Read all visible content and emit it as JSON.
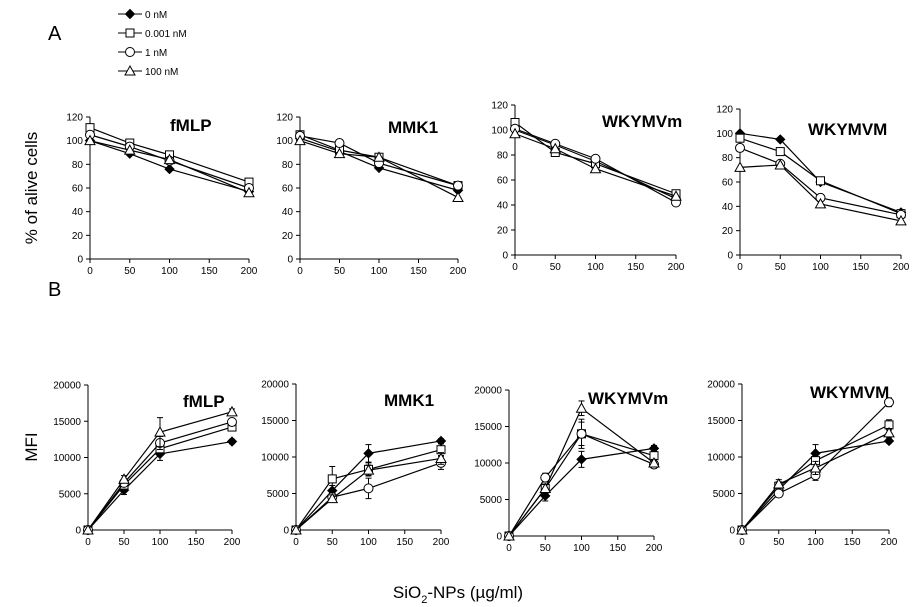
{
  "panel_labels": [
    "A",
    "B"
  ],
  "legend": [
    {
      "label": "0 nM",
      "marker": "diamond"
    },
    {
      "label": "0.001 nM",
      "marker": "square"
    },
    {
      "label": "1 nM",
      "marker": "circle"
    },
    {
      "label": "100 nM",
      "marker": "triangle"
    }
  ],
  "y_label_A": "% of alive cells",
  "y_label_B": "MFI",
  "x_label_prefix": "SiO",
  "x_label_sub": "2",
  "x_label_suffix": "-NPs (µg/ml)",
  "chart_data": [
    {
      "type": "line",
      "panel": "A",
      "title": "fMLP",
      "x": [
        0,
        50,
        100,
        200
      ],
      "xlim": [
        0,
        200
      ],
      "xticks": [
        0,
        50,
        100,
        150,
        200
      ],
      "ylim": [
        0,
        120
      ],
      "yticks": [
        0,
        20,
        40,
        60,
        80,
        100,
        120
      ],
      "yfmt": "plain",
      "series": [
        {
          "name": "0 nM",
          "values": [
            100,
            89,
            76,
            57
          ]
        },
        {
          "name": "0.001 nM",
          "values": [
            111,
            98,
            88,
            65
          ]
        },
        {
          "name": "1 nM",
          "values": [
            105,
            95,
            83,
            60
          ]
        },
        {
          "name": "100 nM",
          "values": [
            100,
            92,
            84,
            56
          ]
        }
      ]
    },
    {
      "type": "line",
      "panel": "A",
      "title": "MMK1",
      "x": [
        0,
        50,
        100,
        200
      ],
      "xlim": [
        0,
        200
      ],
      "xticks": [
        0,
        50,
        100,
        150,
        200
      ],
      "ylim": [
        0,
        120
      ],
      "yticks": [
        0,
        20,
        40,
        60,
        80,
        100,
        120
      ],
      "yfmt": "plain",
      "series": [
        {
          "name": "0 nM",
          "values": [
            102,
            91,
            77,
            58
          ]
        },
        {
          "name": "0.001 nM",
          "values": [
            105,
            92,
            86,
            62
          ]
        },
        {
          "name": "1 nM",
          "values": [
            104,
            98,
            81,
            62
          ]
        },
        {
          "name": "100 nM",
          "values": [
            100,
            89,
            86,
            52
          ]
        }
      ]
    },
    {
      "type": "line",
      "panel": "A",
      "title": "WKYMVm",
      "x": [
        0,
        50,
        100,
        200
      ],
      "xlim": [
        0,
        200
      ],
      "xticks": [
        0,
        50,
        100,
        150,
        200
      ],
      "ylim": [
        0,
        120
      ],
      "yticks": [
        0,
        20,
        40,
        60,
        80,
        100,
        120
      ],
      "yfmt": "plain",
      "series": [
        {
          "name": "0 nM",
          "values": [
            100,
            88,
            75,
            45
          ]
        },
        {
          "name": "0.001 nM",
          "values": [
            106,
            82,
            73,
            49
          ]
        },
        {
          "name": "1 nM",
          "values": [
            101,
            89,
            77,
            42
          ]
        },
        {
          "name": "100 nM",
          "values": [
            97,
            85,
            69,
            47
          ]
        }
      ]
    },
    {
      "type": "line",
      "panel": "A",
      "title": "WKYMVM",
      "x": [
        0,
        50,
        100,
        200
      ],
      "xlim": [
        0,
        200
      ],
      "xticks": [
        0,
        50,
        100,
        150,
        200
      ],
      "ylim": [
        0,
        120
      ],
      "yticks": [
        0,
        20,
        40,
        60,
        80,
        100,
        120
      ],
      "yfmt": "plain",
      "series": [
        {
          "name": "0 nM",
          "values": [
            100,
            95,
            60,
            35
          ]
        },
        {
          "name": "0.001 nM",
          "values": [
            96,
            85,
            61,
            34
          ]
        },
        {
          "name": "1 nM",
          "values": [
            88,
            75,
            47,
            33
          ]
        },
        {
          "name": "100 nM",
          "values": [
            72,
            74,
            42,
            28
          ]
        }
      ]
    },
    {
      "type": "line",
      "panel": "B",
      "title": "fMLP",
      "x": [
        0,
        50,
        100,
        200
      ],
      "xlim": [
        0,
        200
      ],
      "xticks": [
        0,
        50,
        100,
        150,
        200
      ],
      "ylim": [
        0,
        20000
      ],
      "yticks": [
        0,
        5000,
        10000,
        15000,
        20000
      ],
      "yfmt": "plain",
      "series": [
        {
          "name": "0 nM",
          "values": [
            0,
            5500,
            10500,
            12200
          ],
          "err": [
            0,
            600,
            900,
            300
          ]
        },
        {
          "name": "0.001 nM",
          "values": [
            0,
            6200,
            11200,
            14200
          ],
          "err": [
            0,
            500,
            800,
            400
          ]
        },
        {
          "name": "1 nM",
          "values": [
            0,
            6500,
            12000,
            14900
          ],
          "err": [
            0,
            500,
            900,
            500
          ]
        },
        {
          "name": "100 nM",
          "values": [
            0,
            7000,
            13500,
            16300
          ],
          "err": [
            0,
            500,
            2000,
            400
          ]
        }
      ]
    },
    {
      "type": "line",
      "panel": "B",
      "title": "MMK1",
      "x": [
        0,
        50,
        100,
        200
      ],
      "xlim": [
        0,
        200
      ],
      "xticks": [
        0,
        50,
        100,
        150,
        200
      ],
      "ylim": [
        0,
        20000
      ],
      "yticks": [
        0,
        5000,
        10000,
        15000,
        20000
      ],
      "yfmt": "plain",
      "series": [
        {
          "name": "0 nM",
          "values": [
            0,
            5400,
            10500,
            12200
          ],
          "err": [
            0,
            700,
            1200,
            300
          ]
        },
        {
          "name": "0.001 nM",
          "values": [
            0,
            7000,
            8300,
            11000
          ],
          "err": [
            0,
            1700,
            900,
            800
          ]
        },
        {
          "name": "1 nM",
          "values": [
            0,
            4500,
            5700,
            9200
          ],
          "err": [
            0,
            600,
            1400,
            900
          ]
        },
        {
          "name": "100 nM",
          "values": [
            0,
            4300,
            8200,
            9800
          ],
          "err": [
            0,
            500,
            700,
            800
          ]
        }
      ]
    },
    {
      "type": "line",
      "panel": "B",
      "title": "WKYMVm",
      "x": [
        0,
        50,
        100,
        200
      ],
      "xlim": [
        0,
        200
      ],
      "xticks": [
        0,
        50,
        100,
        150,
        200
      ],
      "ylim": [
        0,
        20000
      ],
      "yticks": [
        0,
        5000,
        10000,
        15000,
        20000
      ],
      "yfmt": "plain",
      "series": [
        {
          "name": "0 nM",
          "values": [
            0,
            5500,
            10500,
            12000
          ],
          "err": [
            0,
            700,
            1100,
            400
          ]
        },
        {
          "name": "0.001 nM",
          "values": [
            0,
            6500,
            14000,
            11000
          ],
          "err": [
            0,
            600,
            1600,
            500
          ]
        },
        {
          "name": "1 nM",
          "values": [
            0,
            8000,
            14000,
            9800
          ],
          "err": [
            0,
            600,
            2000,
            500
          ]
        },
        {
          "name": "100 nM",
          "values": [
            0,
            6500,
            17500,
            10000
          ],
          "err": [
            0,
            600,
            1000,
            500
          ]
        }
      ]
    },
    {
      "type": "line",
      "panel": "B",
      "title": "WKYMVM",
      "x": [
        0,
        50,
        100,
        200
      ],
      "xlim": [
        0,
        200
      ],
      "xticks": [
        0,
        50,
        100,
        150,
        200
      ],
      "ylim": [
        0,
        20000
      ],
      "yticks": [
        0,
        5000,
        10000,
        15000,
        20000
      ],
      "yfmt": "plain",
      "series": [
        {
          "name": "0 nM",
          "values": [
            0,
            5500,
            10500,
            12200
          ],
          "err": [
            0,
            600,
            1200,
            300
          ]
        },
        {
          "name": "0.001 nM",
          "values": [
            0,
            6000,
            9500,
            14400
          ],
          "err": [
            0,
            600,
            900,
            700
          ]
        },
        {
          "name": "1 nM",
          "values": [
            0,
            5000,
            7500,
            17500
          ],
          "err": [
            0,
            500,
            700,
            600
          ]
        },
        {
          "name": "100 nM",
          "values": [
            0,
            6300,
            8500,
            13300
          ],
          "err": [
            0,
            600,
            900,
            600
          ]
        }
      ]
    }
  ]
}
